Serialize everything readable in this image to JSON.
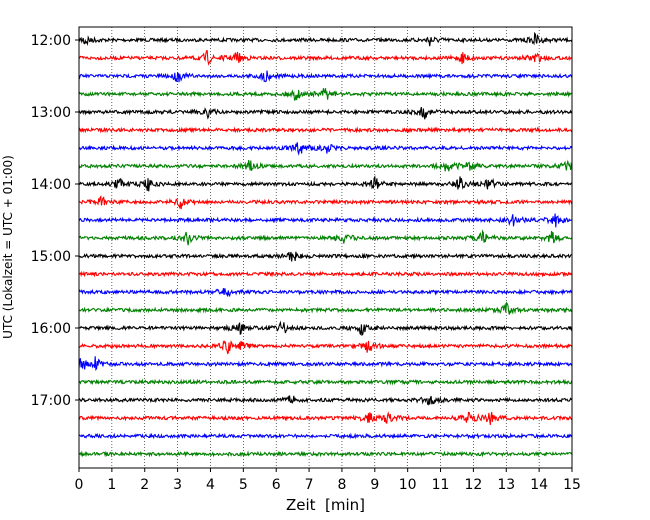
{
  "chart_data": {
    "type": "line",
    "title": "",
    "xlabel": "Zeit  [min]",
    "ylabel": "UTC (Lokalzeit = UTC + 01:00)",
    "xlim": [
      0,
      15
    ],
    "x_ticks": [
      "0",
      "1",
      "2",
      "3",
      "4",
      "5",
      "6",
      "7",
      "8",
      "9",
      "10",
      "11",
      "12",
      "13",
      "14",
      "15"
    ],
    "y_tick_labels": [
      "12:00",
      "13:00",
      "14:00",
      "15:00",
      "16:00",
      "17:00"
    ],
    "vertical_grid": "dotted, every minute",
    "trace_colors": [
      "#000000",
      "#ff0000",
      "#0000ff",
      "#008000"
    ],
    "traces": [
      {
        "start": "12:00",
        "color": "#000000",
        "events": [
          0.2,
          10.7,
          13.9
        ]
      },
      {
        "start": "12:15",
        "color": "#ff0000",
        "events": [
          3.9,
          4.8,
          11.7,
          13.9
        ]
      },
      {
        "start": "12:30",
        "color": "#0000ff",
        "events": [
          3.0,
          5.7
        ]
      },
      {
        "start": "12:45",
        "color": "#008000",
        "events": [
          6.6,
          7.5
        ]
      },
      {
        "start": "13:00",
        "color": "#000000",
        "events": [
          3.9,
          10.5
        ]
      },
      {
        "start": "13:15",
        "color": "#ff0000",
        "events": []
      },
      {
        "start": "13:30",
        "color": "#0000ff",
        "events": [
          7.6,
          6.7
        ]
      },
      {
        "start": "13:45",
        "color": "#008000",
        "events": [
          5.2,
          11.2,
          11.9,
          14.9
        ]
      },
      {
        "start": "14:00",
        "color": "#000000",
        "events": [
          1.2,
          2.1,
          9.0,
          11.6,
          12.5
        ]
      },
      {
        "start": "14:15",
        "color": "#ff0000",
        "events": [
          0.7,
          3.1
        ]
      },
      {
        "start": "14:30",
        "color": "#0000ff",
        "events": [
          13.2,
          14.5
        ]
      },
      {
        "start": "14:45",
        "color": "#008000",
        "events": [
          3.3,
          8.1,
          12.3,
          14.4
        ]
      },
      {
        "start": "15:00",
        "color": "#000000",
        "events": [
          6.5
        ]
      },
      {
        "start": "15:15",
        "color": "#ff0000",
        "events": []
      },
      {
        "start": "15:30",
        "color": "#0000ff",
        "events": [
          4.5
        ]
      },
      {
        "start": "15:45",
        "color": "#008000",
        "events": [
          13.0
        ]
      },
      {
        "start": "16:00",
        "color": "#000000",
        "events": [
          4.9,
          6.2,
          8.6
        ]
      },
      {
        "start": "16:15",
        "color": "#ff0000",
        "events": [
          4.5,
          4.9,
          8.8
        ]
      },
      {
        "start": "16:30",
        "color": "#0000ff",
        "events": [
          0.1,
          0.5
        ]
      },
      {
        "start": "16:45",
        "color": "#008000",
        "events": []
      },
      {
        "start": "17:00",
        "color": "#000000",
        "events": [
          6.5,
          10.7
        ]
      },
      {
        "start": "17:15",
        "color": "#ff0000",
        "events": [
          8.8,
          9.4,
          11.8,
          12.5
        ]
      },
      {
        "start": "17:30",
        "color": "#0000ff",
        "events": []
      },
      {
        "start": "17:45",
        "color": "#008000",
        "events": []
      }
    ]
  }
}
